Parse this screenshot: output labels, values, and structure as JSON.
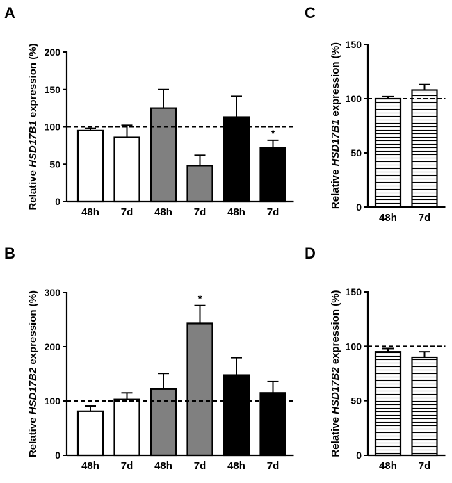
{
  "colors": {
    "white": "#ffffff",
    "gray": "#808080",
    "black": "#000000"
  },
  "chart_data": [
    {
      "id": "A",
      "panel_label": "A",
      "type": "bar",
      "ylabel_pre": "Relative ",
      "ylabel_gene": "HSD17B1",
      "ylabel_post": " expression (%)",
      "categories": [
        "48h",
        "7d",
        "48h",
        "7d",
        "48h",
        "7d"
      ],
      "values": [
        95,
        86,
        125,
        48,
        113,
        72
      ],
      "errors": [
        3,
        16,
        25,
        14,
        28,
        10
      ],
      "fills": [
        "white",
        "white",
        "gray",
        "gray",
        "black",
        "black"
      ],
      "significance": [
        "",
        "",
        "",
        "",
        "",
        "*"
      ],
      "ylim": [
        0,
        200
      ],
      "yticks": [
        "0",
        "50",
        "100",
        "150",
        "200"
      ],
      "reference_line": 100
    },
    {
      "id": "B",
      "panel_label": "B",
      "type": "bar",
      "ylabel_pre": "Relative ",
      "ylabel_gene": "HSD17B2",
      "ylabel_post": " expression (%)",
      "categories": [
        "48h",
        "7d",
        "48h",
        "7d",
        "48h",
        "7d"
      ],
      "values": [
        81,
        103,
        122,
        243,
        148,
        115
      ],
      "errors": [
        10,
        12,
        29,
        33,
        32,
        21
      ],
      "fills": [
        "white",
        "white",
        "gray",
        "gray",
        "black",
        "black"
      ],
      "significance": [
        "",
        "",
        "",
        "*",
        "",
        ""
      ],
      "ylim": [
        0,
        300
      ],
      "yticks": [
        "0",
        "100",
        "200",
        "300"
      ],
      "reference_line": 100
    },
    {
      "id": "C",
      "panel_label": "C",
      "type": "bar",
      "ylabel_pre": "Relative ",
      "ylabel_gene": "HSD17B1",
      "ylabel_post": " expression (%)",
      "categories": [
        "48h",
        "7d"
      ],
      "values": [
        100,
        108
      ],
      "errors": [
        2,
        5
      ],
      "fills": [
        "hatched",
        "hatched"
      ],
      "significance": [
        "",
        ""
      ],
      "ylim": [
        0,
        150
      ],
      "yticks": [
        "0",
        "50",
        "100",
        "150"
      ],
      "reference_line": 100
    },
    {
      "id": "D",
      "panel_label": "D",
      "type": "bar",
      "ylabel_pre": "Relative ",
      "ylabel_gene": "HSD17B2",
      "ylabel_post": " expression (%)",
      "categories": [
        "48h",
        "7d"
      ],
      "values": [
        95,
        90
      ],
      "errors": [
        3,
        5
      ],
      "fills": [
        "hatched",
        "hatched"
      ],
      "significance": [
        "",
        ""
      ],
      "ylim": [
        0,
        150
      ],
      "yticks": [
        "0",
        "50",
        "100",
        "150"
      ],
      "reference_line": 100
    }
  ]
}
